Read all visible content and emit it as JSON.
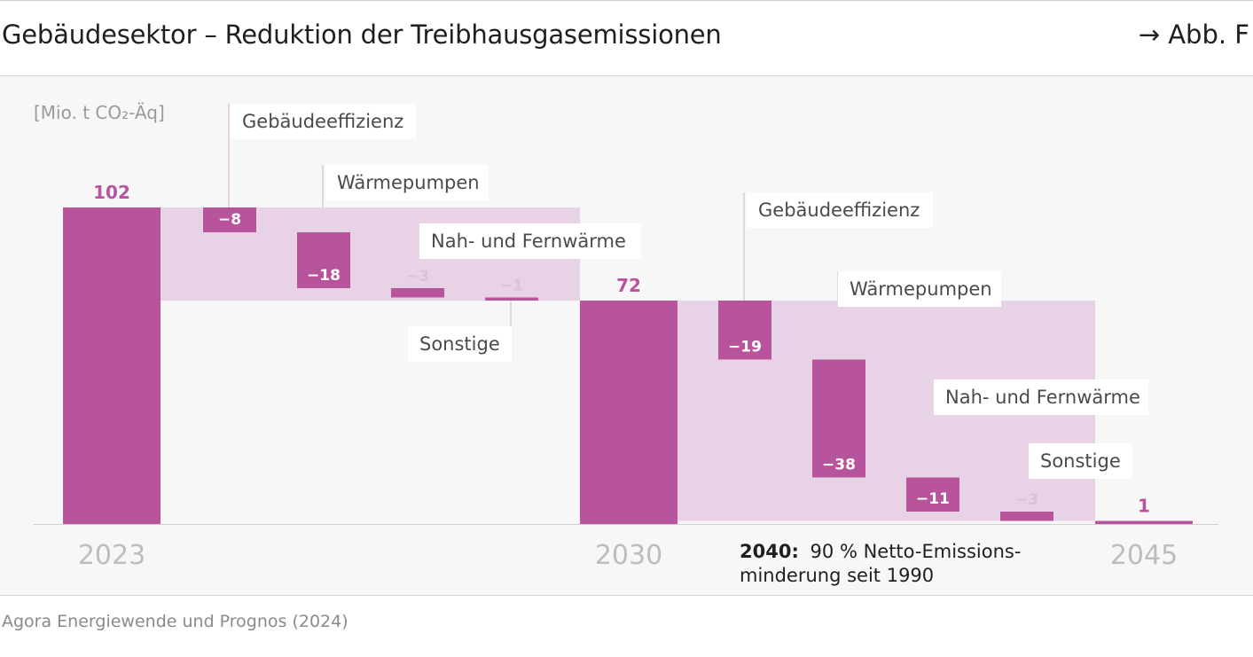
{
  "header": {
    "title": "Gebäudesektor – Reduktion der Treibhausgasemissionen",
    "figure_ref": "→ Abb. F"
  },
  "source": "Agora Energiewende und Prognos (2024)",
  "colors": {
    "bar": "#b7549c",
    "bar_light": "#e8d3e6",
    "value_muted": "#e0bfdb",
    "label_text": "#4a4a4a",
    "axis_text": "#bdbdbd"
  },
  "chart_data": {
    "type": "bar",
    "subtype": "waterfall",
    "title": "Gebäudesektor – Reduktion der Treibhausgasemissionen",
    "ylabel": "[Mio. t CO₂-Äq]",
    "ylim": [
      0,
      102
    ],
    "axis_labels": [
      "2023",
      "2030",
      "2045"
    ],
    "annotation": {
      "bold": "2040:",
      "line1": "90 % Netto-Emissions-",
      "line2": "minderung seit 1990"
    },
    "steps": [
      {
        "kind": "total",
        "label": "2023",
        "value": 102,
        "value_label": "102"
      },
      {
        "kind": "delta",
        "label": "Gebäudeeffizienz",
        "value": -8,
        "value_label": "−8"
      },
      {
        "kind": "delta",
        "label": "Wärmepumpen",
        "value": -18,
        "value_label": "−18"
      },
      {
        "kind": "delta",
        "label": "Nah- und Fernwärme",
        "value": -3,
        "value_label": "−3"
      },
      {
        "kind": "delta",
        "label": "Sonstige",
        "value": -1,
        "value_label": "−1"
      },
      {
        "kind": "total",
        "label": "2030",
        "value": 72,
        "value_label": "72"
      },
      {
        "kind": "delta",
        "label": "Gebäudeeffizienz",
        "value": -19,
        "value_label": "−19"
      },
      {
        "kind": "delta",
        "label": "Wärmepumpen",
        "value": -38,
        "value_label": "−38"
      },
      {
        "kind": "delta",
        "label": "Nah- und Fernwärme",
        "value": -11,
        "value_label": "−11"
      },
      {
        "kind": "delta",
        "label": "Sonstige",
        "value": -3,
        "value_label": "−3"
      },
      {
        "kind": "total",
        "label": "2045",
        "value": 1,
        "value_label": "1"
      }
    ]
  }
}
